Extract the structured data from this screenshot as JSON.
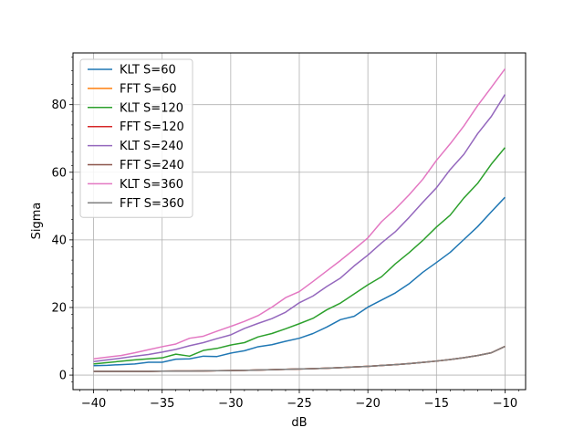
{
  "chart_data": {
    "type": "line",
    "xlabel": "dB",
    "ylabel": "Sigma",
    "xlim": [
      -41.5,
      -8.5
    ],
    "ylim": [
      -4.3,
      95.3
    ],
    "grid": true,
    "legend_position": "top-left",
    "xticks": [
      -40,
      -35,
      -30,
      -25,
      -20,
      -15,
      -10
    ],
    "yticks": [
      0,
      20,
      40,
      60,
      80
    ],
    "x": [
      -40,
      -39,
      -38,
      -37,
      -36,
      -35,
      -34,
      -33,
      -32,
      -31,
      -30,
      -29,
      -28,
      -27,
      -26,
      -25,
      -24,
      -23,
      -22,
      -21,
      -20,
      -19,
      -18,
      -17,
      -16,
      -15,
      -14,
      -13,
      -12,
      -11,
      -10
    ],
    "series": [
      {
        "name": "KLT S=60",
        "color": "#1f77b4",
        "values": [
          2.8,
          2.9,
          3.1,
          3.3,
          3.8,
          3.8,
          4.7,
          4.8,
          5.6,
          5.5,
          6.5,
          7.2,
          8.4,
          9.0,
          10.0,
          10.9,
          12.3,
          14.2,
          16.4,
          17.4,
          20.1,
          22.2,
          24.3,
          27.0,
          30.4,
          33.3,
          36.3,
          40.1,
          43.9,
          48.3,
          52.6
        ]
      },
      {
        "name": "FFT S=60",
        "color": "#ff7f0e",
        "values": [
          1.1,
          1.1,
          1.1,
          1.1,
          1.1,
          1.15,
          1.2,
          1.2,
          1.25,
          1.3,
          1.35,
          1.4,
          1.5,
          1.6,
          1.7,
          1.8,
          1.9,
          2.05,
          2.2,
          2.4,
          2.6,
          2.85,
          3.1,
          3.4,
          3.75,
          4.15,
          4.6,
          5.15,
          5.8,
          6.6,
          8.5
        ]
      },
      {
        "name": "KLT S=120",
        "color": "#2ca02c",
        "values": [
          3.3,
          3.7,
          4.1,
          4.5,
          4.8,
          5.1,
          6.2,
          5.6,
          7.3,
          7.9,
          8.9,
          9.6,
          11.3,
          12.3,
          13.7,
          15.2,
          16.8,
          19.3,
          21.3,
          24.0,
          26.7,
          29.1,
          32.9,
          36.2,
          39.8,
          43.8,
          47.3,
          52.4,
          56.7,
          62.4,
          67.3
        ]
      },
      {
        "name": "FFT S=120",
        "color": "#d62728",
        "values": [
          1.1,
          1.1,
          1.1,
          1.1,
          1.1,
          1.15,
          1.2,
          1.2,
          1.25,
          1.3,
          1.35,
          1.4,
          1.5,
          1.6,
          1.7,
          1.8,
          1.9,
          2.05,
          2.2,
          2.4,
          2.6,
          2.85,
          3.1,
          3.4,
          3.75,
          4.15,
          4.6,
          5.15,
          5.8,
          6.6,
          8.5
        ]
      },
      {
        "name": "KLT S=240",
        "color": "#9467bd",
        "values": [
          4.0,
          4.5,
          5.0,
          5.6,
          6.1,
          6.8,
          7.6,
          8.7,
          9.6,
          10.8,
          11.9,
          13.8,
          15.3,
          16.7,
          18.6,
          21.4,
          23.4,
          26.2,
          28.7,
          32.3,
          35.5,
          39.1,
          42.4,
          46.6,
          51.1,
          55.4,
          60.8,
          65.3,
          71.4,
          76.5,
          83.0
        ]
      },
      {
        "name": "FFT S=240",
        "color": "#8c564b",
        "values": [
          1.1,
          1.1,
          1.1,
          1.1,
          1.1,
          1.15,
          1.2,
          1.2,
          1.25,
          1.3,
          1.35,
          1.4,
          1.5,
          1.6,
          1.7,
          1.8,
          1.9,
          2.05,
          2.2,
          2.4,
          2.6,
          2.85,
          3.1,
          3.4,
          3.75,
          4.15,
          4.6,
          5.15,
          5.8,
          6.6,
          8.5
        ]
      },
      {
        "name": "KLT S=360",
        "color": "#e377c2",
        "values": [
          4.8,
          5.3,
          5.8,
          6.6,
          7.5,
          8.4,
          9.2,
          10.9,
          11.5,
          13.0,
          14.4,
          15.9,
          17.6,
          20.1,
          22.9,
          24.7,
          27.7,
          30.8,
          33.9,
          37.2,
          40.6,
          45.4,
          49.1,
          53.3,
          57.9,
          63.5,
          68.4,
          73.7,
          79.7,
          85.1,
          90.6
        ]
      },
      {
        "name": "FFT S=360",
        "color": "#7f7f7f",
        "values": [
          1.1,
          1.1,
          1.1,
          1.1,
          1.1,
          1.15,
          1.2,
          1.2,
          1.25,
          1.3,
          1.35,
          1.4,
          1.5,
          1.6,
          1.7,
          1.8,
          1.9,
          2.05,
          2.2,
          2.4,
          2.6,
          2.85,
          3.1,
          3.4,
          3.75,
          4.15,
          4.6,
          5.15,
          5.8,
          6.6,
          8.5
        ]
      }
    ]
  }
}
